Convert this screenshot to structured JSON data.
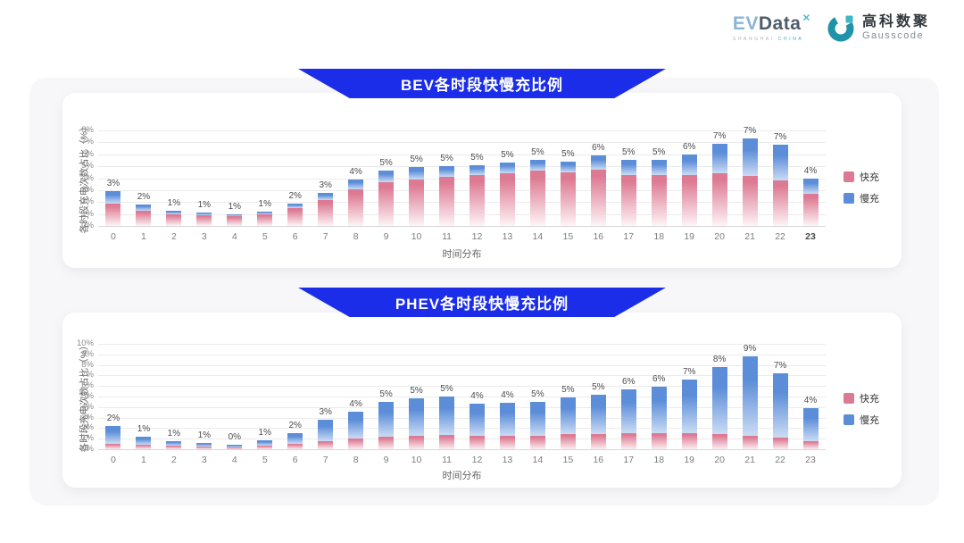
{
  "header": {
    "evdata": {
      "ev": "EV",
      "data": "Data",
      "x": "✕",
      "sub_left": "SHANGHAI",
      "sub_right": "CHINA"
    },
    "gausscode": {
      "cn": "高科数聚",
      "en": "Gausscode"
    }
  },
  "colors": {
    "banner_blue": "#1b2de8",
    "fast_pink": "#dd7a93",
    "slow_blue": "#5c8dd8",
    "panel_gray": "#f7f7f9",
    "logo_teal": "#2aa9bc"
  },
  "chart_data": [
    {
      "id": "bev",
      "type": "bar",
      "stacked": true,
      "title": "BEV各时段快慢充比例",
      "xlabel": "时间分布",
      "ylabel": "各时段充电次数占比（%）",
      "ylim": [
        0,
        8
      ],
      "ytick_step": 1,
      "grid": true,
      "legend_position": "right",
      "categories": [
        "0",
        "1",
        "2",
        "3",
        "4",
        "5",
        "6",
        "7",
        "8",
        "9",
        "10",
        "11",
        "12",
        "13",
        "14",
        "15",
        "16",
        "17",
        "18",
        "19",
        "20",
        "21",
        "22",
        "23"
      ],
      "series": [
        {
          "name": "快充",
          "color": "#dd7a93",
          "fade": "#fdf4f6",
          "values": [
            1.9,
            1.3,
            1.0,
            0.9,
            0.85,
            1.0,
            1.5,
            2.2,
            3.1,
            3.7,
            3.9,
            4.1,
            4.3,
            4.4,
            4.6,
            4.5,
            4.7,
            4.3,
            4.3,
            4.3,
            4.4,
            4.2,
            3.8,
            2.7
          ]
        },
        {
          "name": "慢充",
          "color": "#5c8dd8",
          "fade": "#cadcf4",
          "values": [
            1.0,
            0.5,
            0.3,
            0.25,
            0.1,
            0.2,
            0.4,
            0.55,
            0.8,
            0.9,
            1.0,
            0.9,
            0.8,
            0.9,
            0.9,
            0.9,
            1.2,
            1.2,
            1.2,
            1.7,
            2.5,
            3.1,
            3.0,
            1.3
          ]
        }
      ],
      "total_labels": [
        "3%",
        "2%",
        "1%",
        "1%",
        "1%",
        "1%",
        "2%",
        "3%",
        "4%",
        "5%",
        "5%",
        "5%",
        "5%",
        "5%",
        "5%",
        "5%",
        "6%",
        "5%",
        "5%",
        "6%",
        "7%",
        "7%",
        "7%",
        "4%"
      ]
    },
    {
      "id": "phev",
      "type": "bar",
      "stacked": true,
      "title": "PHEV各时段快慢充比例",
      "xlabel": "时间分布",
      "ylabel": "各时段充电次数占比（%）",
      "ylim": [
        0,
        10
      ],
      "ytick_step": 1,
      "grid": true,
      "legend_position": "right",
      "categories": [
        "0",
        "1",
        "2",
        "3",
        "4",
        "5",
        "6",
        "7",
        "8",
        "9",
        "10",
        "11",
        "12",
        "13",
        "14",
        "15",
        "16",
        "17",
        "18",
        "19",
        "20",
        "21",
        "22",
        "23"
      ],
      "series": [
        {
          "name": "快充",
          "color": "#dd7a93",
          "fade": "#fbeef1",
          "values": [
            0.5,
            0.4,
            0.3,
            0.25,
            0.2,
            0.35,
            0.55,
            0.75,
            1.0,
            1.2,
            1.3,
            1.35,
            1.25,
            1.3,
            1.3,
            1.4,
            1.45,
            1.5,
            1.5,
            1.5,
            1.45,
            1.3,
            1.1,
            0.8
          ]
        },
        {
          "name": "慢充",
          "color": "#5c8dd8",
          "fade": "#cadcf4",
          "values": [
            1.7,
            0.8,
            0.5,
            0.35,
            0.25,
            0.5,
            0.95,
            2.05,
            2.6,
            3.3,
            3.5,
            3.65,
            3.05,
            3.1,
            3.2,
            3.5,
            3.75,
            4.2,
            4.4,
            5.1,
            6.35,
            7.5,
            6.1,
            3.1
          ]
        }
      ],
      "total_labels": [
        "2%",
        "1%",
        "1%",
        "1%",
        "0%",
        "1%",
        "2%",
        "3%",
        "4%",
        "5%",
        "5%",
        "5%",
        "4%",
        "4%",
        "5%",
        "5%",
        "5%",
        "6%",
        "6%",
        "7%",
        "8%",
        "9%",
        "7%",
        "4%"
      ]
    }
  ]
}
